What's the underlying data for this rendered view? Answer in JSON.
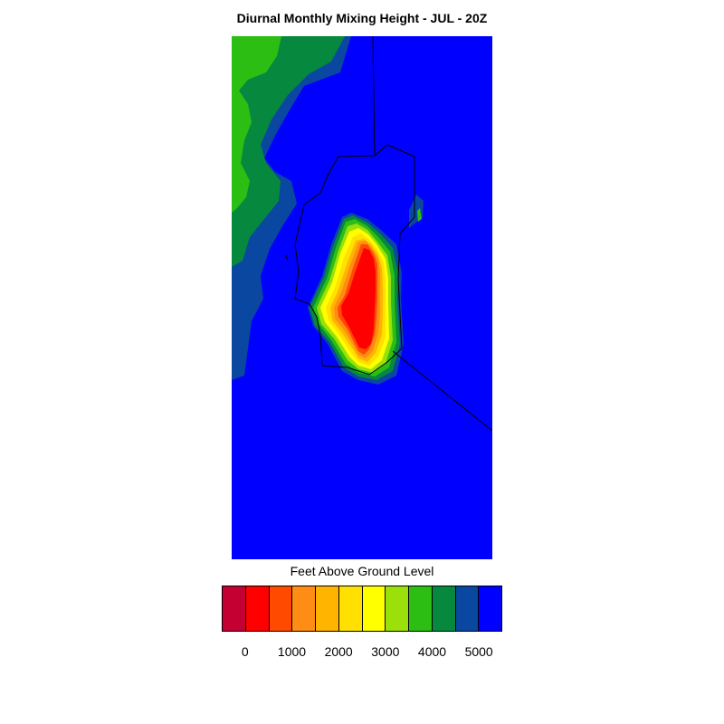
{
  "title": "Diurnal Monthly Mixing Height - JUL - 20Z",
  "legend": {
    "label": "Feet Above Ground Level",
    "colors": [
      "#c40032",
      "#ff0000",
      "#ff4a00",
      "#ff8c14",
      "#ffb400",
      "#ffe000",
      "#ffff00",
      "#9be00a",
      "#2dbe14",
      "#06893e",
      "#0a47a0",
      "#0000ff"
    ],
    "ticks": [
      "0",
      "1000",
      "2000",
      "3000",
      "4000",
      "5000"
    ]
  },
  "map": {
    "background_color": "#0000ff",
    "boundary_color": "#000000"
  }
}
